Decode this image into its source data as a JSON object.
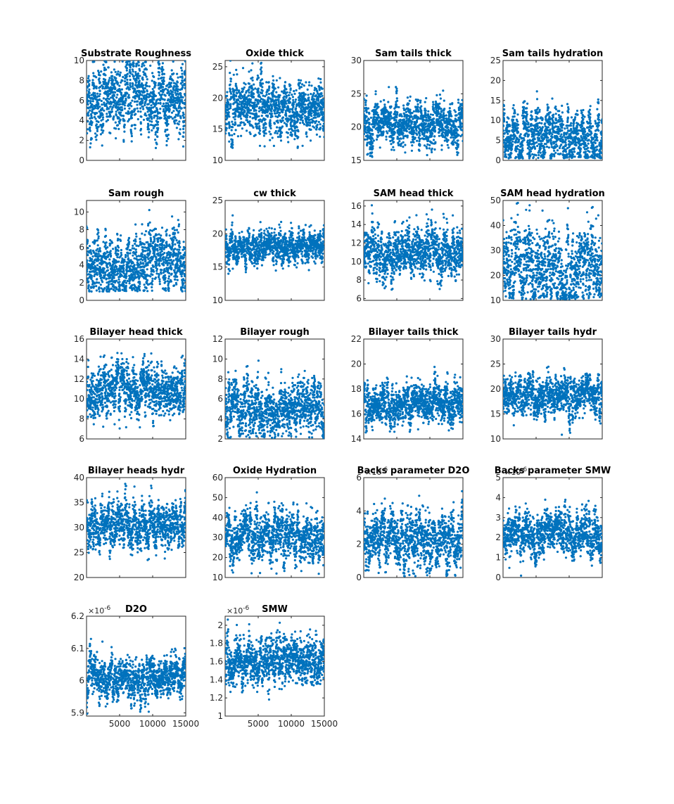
{
  "figure": {
    "marker_color": "#0072BD",
    "x_tick_labels": [
      "5000",
      "10000",
      "15000"
    ]
  },
  "chart_data": [
    {
      "type": "scatter",
      "title": "Substrate Roughness",
      "xlim": [
        1,
        15000
      ],
      "ylim": [
        0,
        10
      ],
      "yticks": [
        0,
        2,
        4,
        6,
        8,
        10
      ],
      "y_tick_labels": [
        "0",
        "2",
        "4",
        "6",
        "8",
        "10"
      ],
      "y_center": 6.0,
      "y_spread": 1.9,
      "y_min": 1.0,
      "y_max": 10.0
    },
    {
      "type": "scatter",
      "title": "Oxide thick",
      "xlim": [
        1,
        15000
      ],
      "ylim": [
        10,
        26
      ],
      "yticks": [
        10,
        15,
        20,
        25
      ],
      "y_tick_labels": [
        "10",
        "15",
        "20",
        "25"
      ],
      "y_center": 18.5,
      "y_spread": 2.4,
      "y_min": 12.0,
      "y_max": 26.0
    },
    {
      "type": "scatter",
      "title": "Sam tails thick",
      "xlim": [
        1,
        15000
      ],
      "ylim": [
        15,
        30
      ],
      "yticks": [
        15,
        20,
        25,
        30
      ],
      "y_tick_labels": [
        "15",
        "20",
        "25",
        "30"
      ],
      "y_center": 20.5,
      "y_spread": 1.8,
      "y_min": 15.5,
      "y_max": 29.0
    },
    {
      "type": "scatter",
      "title": "Sam tails hydration",
      "xlim": [
        1,
        15000
      ],
      "ylim": [
        0,
        25
      ],
      "yticks": [
        0,
        5,
        10,
        15,
        20,
        25
      ],
      "y_tick_labels": [
        "0",
        "5",
        "10",
        "15",
        "20",
        "25"
      ],
      "y_center": 6.0,
      "y_spread": 3.6,
      "y_min": 0.5,
      "y_max": 24.5
    },
    {
      "type": "scatter",
      "title": "Sam rough",
      "xlim": [
        1,
        15000
      ],
      "ylim": [
        0,
        11.3
      ],
      "yticks": [
        0,
        2,
        4,
        6,
        8,
        10
      ],
      "y_tick_labels": [
        "0",
        "2",
        "4",
        "6",
        "8",
        "10"
      ],
      "y_center": 4.0,
      "y_spread": 2.0,
      "y_min": 1.0,
      "y_max": 11.2
    },
    {
      "type": "scatter",
      "title": "cw thick",
      "xlim": [
        1,
        15000
      ],
      "ylim": [
        10,
        25
      ],
      "yticks": [
        10,
        15,
        20,
        25
      ],
      "y_tick_labels": [
        "10",
        "15",
        "20",
        "25"
      ],
      "y_center": 18.0,
      "y_spread": 1.3,
      "y_min": 13.0,
      "y_max": 25.0
    },
    {
      "type": "scatter",
      "title": "SAM head thick",
      "xlim": [
        1,
        15000
      ],
      "ylim": [
        5.8,
        16.6
      ],
      "yticks": [
        6,
        8,
        10,
        12,
        14,
        16
      ],
      "y_tick_labels": [
        "6",
        "8",
        "10",
        "12",
        "14",
        "16"
      ],
      "y_center": 11.0,
      "y_spread": 1.5,
      "y_min": 6.0,
      "y_max": 16.5
    },
    {
      "type": "scatter",
      "title": "SAM head hydration",
      "xlim": [
        1,
        15000
      ],
      "ylim": [
        10,
        50
      ],
      "yticks": [
        10,
        20,
        30,
        40,
        50
      ],
      "y_tick_labels": [
        "10",
        "20",
        "30",
        "40",
        "50"
      ],
      "y_center": 24.0,
      "y_spread": 9.0,
      "y_min": 10.5,
      "y_max": 49.5
    },
    {
      "type": "scatter",
      "title": "Bilayer head thick",
      "xlim": [
        1,
        15000
      ],
      "ylim": [
        6,
        16
      ],
      "yticks": [
        6,
        8,
        10,
        12,
        14,
        16
      ],
      "y_tick_labels": [
        "6",
        "8",
        "10",
        "12",
        "14",
        "16"
      ],
      "y_center": 11.0,
      "y_spread": 1.4,
      "y_min": 7.0,
      "y_max": 15.8
    },
    {
      "type": "scatter",
      "title": "Bilayer rough",
      "xlim": [
        1,
        15000
      ],
      "ylim": [
        2,
        12
      ],
      "yticks": [
        2,
        4,
        6,
        8,
        10,
        12
      ],
      "y_tick_labels": [
        "2",
        "4",
        "6",
        "8",
        "10",
        "12"
      ],
      "y_center": 5.0,
      "y_spread": 1.5,
      "y_min": 2.1,
      "y_max": 10.8
    },
    {
      "type": "scatter",
      "title": "Bilayer tails thick",
      "xlim": [
        1,
        15000
      ],
      "ylim": [
        14,
        22
      ],
      "yticks": [
        14,
        16,
        18,
        20,
        22
      ],
      "y_tick_labels": [
        "14",
        "16",
        "18",
        "20",
        "22"
      ],
      "y_center": 16.8,
      "y_spread": 0.9,
      "y_min": 14.5,
      "y_max": 20.5
    },
    {
      "type": "scatter",
      "title": "Bilayer tails hydr",
      "xlim": [
        1,
        15000
      ],
      "ylim": [
        10,
        30
      ],
      "yticks": [
        10,
        15,
        20,
        25,
        30
      ],
      "y_tick_labels": [
        "10",
        "15",
        "20",
        "25",
        "30"
      ],
      "y_center": 18.5,
      "y_spread": 2.2,
      "y_min": 10.5,
      "y_max": 27.0
    },
    {
      "type": "scatter",
      "title": "Bilayer heads hydr",
      "xlim": [
        1,
        15000
      ],
      "ylim": [
        20,
        40
      ],
      "yticks": [
        20,
        25,
        30,
        35,
        40
      ],
      "y_tick_labels": [
        "20",
        "25",
        "30",
        "35",
        "40"
      ],
      "y_center": 30.5,
      "y_spread": 2.5,
      "y_min": 20.5,
      "y_max": 39.0
    },
    {
      "type": "scatter",
      "title": "Oxide Hydration",
      "xlim": [
        1,
        15000
      ],
      "ylim": [
        10,
        60
      ],
      "yticks": [
        10,
        20,
        30,
        40,
        50,
        60
      ],
      "y_tick_labels": [
        "10",
        "20",
        "30",
        "40",
        "50",
        "60"
      ],
      "y_center": 30.0,
      "y_spread": 6.5,
      "y_min": 11.0,
      "y_max": 54.0
    },
    {
      "type": "scatter",
      "title": "Backs parameter D2O",
      "xlim": [
        1,
        15000
      ],
      "ylim": [
        0,
        6
      ],
      "yticks": [
        0,
        2,
        4,
        6
      ],
      "y_tick_labels": [
        "0",
        "2",
        "4",
        "6"
      ],
      "exponent": "-6",
      "y_center": 2.3,
      "y_spread": 0.9,
      "y_min": 0.05,
      "y_max": 5.3
    },
    {
      "type": "scatter",
      "title": "Backs parameter SMW",
      "xlim": [
        1,
        15000
      ],
      "ylim": [
        0,
        5
      ],
      "yticks": [
        0,
        1,
        2,
        3,
        4,
        5
      ],
      "y_tick_labels": [
        "0",
        "1",
        "2",
        "3",
        "4",
        "5"
      ],
      "exponent": "-6",
      "y_center": 2.2,
      "y_spread": 0.6,
      "y_min": 0.05,
      "y_max": 4.3
    },
    {
      "type": "scatter",
      "title": "D2O",
      "xlim": [
        1,
        15000
      ],
      "ylim": [
        5.89,
        6.2
      ],
      "yticks": [
        5.9,
        6.0,
        6.1,
        6.2
      ],
      "y_tick_labels": [
        "5.9",
        "6",
        "6.1",
        "6.2"
      ],
      "exponent": "-6",
      "y_center": 6.01,
      "y_spread": 0.035,
      "y_min": 5.895,
      "y_max": 6.16
    },
    {
      "type": "scatter",
      "title": "SMW",
      "xlim": [
        1,
        15000
      ],
      "ylim": [
        1.0,
        2.1
      ],
      "yticks": [
        1.0,
        1.2,
        1.4,
        1.6,
        1.8,
        2.0
      ],
      "y_tick_labels": [
        "1",
        "1.2",
        "1.4",
        "1.6",
        "1.8",
        "2"
      ],
      "exponent": "-6",
      "y_center": 1.6,
      "y_spread": 0.15,
      "y_min": 1.0,
      "y_max": 2.07
    }
  ]
}
